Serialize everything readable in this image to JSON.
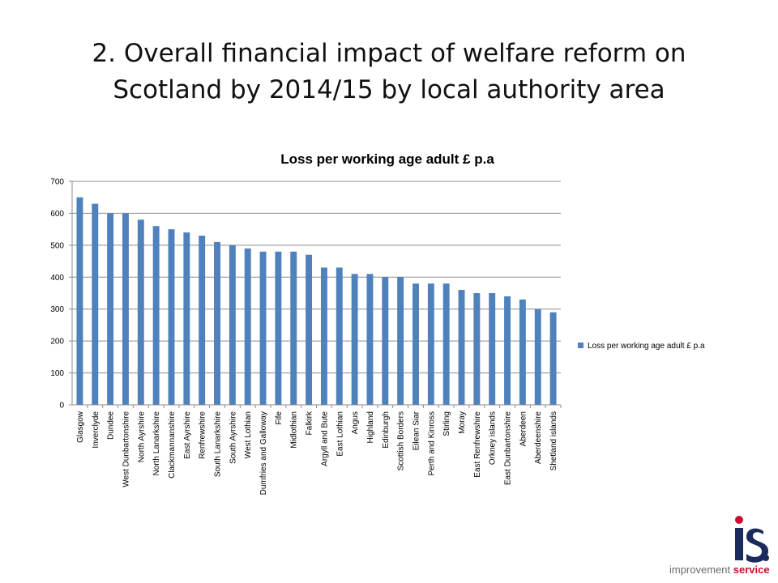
{
  "slide": {
    "title_line1": "2. Overall financial impact of welfare reform on",
    "title_line2": "Scotland by 2014/15 by local authority area"
  },
  "logo": {
    "mark_text": "is.",
    "word1": "improvement",
    "word2": "service",
    "colors": {
      "red": "#c8102e",
      "navy": "#1b2a5c",
      "grey": "#6a6a6a"
    }
  },
  "chart_data": {
    "type": "bar",
    "title": "Loss per working age adult £ p.a",
    "xlabel": "",
    "ylabel": "",
    "ylim": [
      0,
      700
    ],
    "yticks": [
      0,
      100,
      200,
      300,
      400,
      500,
      600,
      700
    ],
    "grid": true,
    "legend_position": "right",
    "categories": [
      "Glasgow",
      "Inverclyde",
      "Dundee",
      "West Dunbartonshire",
      "North Ayrshire",
      "North Lanarkshire",
      "Clackmannanshire",
      "East Ayrshire",
      "Renfrewshire",
      "South Lanarkshire",
      "South Ayrshire",
      "West Lothian",
      "Dumfries and Galloway",
      "Fife",
      "Midlothian",
      "Falkirk",
      "Argyll and Bute",
      "East Lothian",
      "Angus",
      "Highland",
      "Edinburgh",
      "Scottish Borders",
      "Eilean Siar",
      "Perth and Kinross",
      "Stirling",
      "Moray",
      "East Renfrewshire",
      "Orkney islands",
      "East Dunbartonshire",
      "Aberdeen",
      "Aberdeenshire",
      "Shetland islands"
    ],
    "series": [
      {
        "name": "Loss per working age adult £ p.a",
        "color": "#4f81bd",
        "values": [
          650,
          630,
          600,
          600,
          580,
          560,
          550,
          540,
          530,
          510,
          500,
          490,
          480,
          480,
          480,
          470,
          430,
          430,
          410,
          410,
          400,
          400,
          380,
          380,
          380,
          360,
          350,
          350,
          340,
          330,
          300,
          290
        ]
      }
    ]
  }
}
